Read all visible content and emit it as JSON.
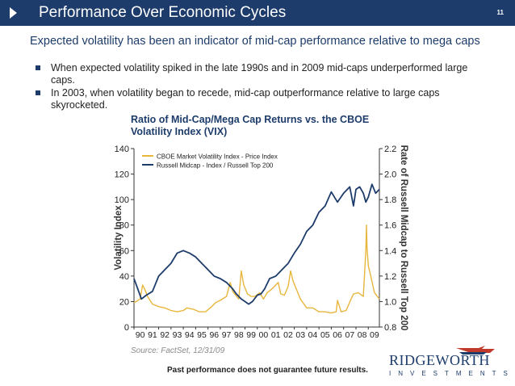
{
  "slide": {
    "title": "Performance Over Economic Cycles",
    "page_number": "11",
    "subtitle": "Expected volatility has been an indicator of mid-cap performance relative to mega caps",
    "bullets": [
      "When expected volatility spiked in the late 1990s and in 2009 mid-caps underperformed large caps.",
      "In 2003, when volatility began to recede, mid-cap outperformance  relative to large caps skyrocketed."
    ],
    "footer_note": "Past performance does not guarantee future results.",
    "logo": {
      "name": "RIDGEWORTH",
      "tagline": "INVESTMENTS"
    },
    "colors": {
      "title_bar": "#1d3c6b",
      "vix": "#e8b63c",
      "russell": "#1d3c6b"
    }
  },
  "chart_data": {
    "type": "line",
    "title": "Ratio of Mid-Cap/Mega Cap Returns vs. the CBOE Volatility Index (VIX)",
    "source": "Source: FactSet, 12/31/09",
    "ylabel_left": "Volatility Index",
    "ylabel_right": "Rate of Russell Midcap to Russell Top 200",
    "ylim_left": [
      0,
      140
    ],
    "ylim_right": [
      0.8,
      2.2
    ],
    "yticks_left": [
      "0",
      "20",
      "40",
      "60",
      "80",
      "100",
      "120",
      "140"
    ],
    "yticks_right": [
      "0.8",
      "1.0",
      "1.2",
      "1.4",
      "1.6",
      "1.8",
      "2.0",
      "2.2"
    ],
    "x_categories": [
      "90",
      "91",
      "92",
      "93",
      "94",
      "95",
      "96",
      "97",
      "98",
      "99",
      "00",
      "01",
      "02",
      "03",
      "04",
      "05",
      "06",
      "07",
      "08",
      "09"
    ],
    "xlim": [
      1990.0,
      2009.9
    ],
    "legend_position": "top-left",
    "series": [
      {
        "name": "CBOE Market Volatility Index - Price Index",
        "axis": "left",
        "color": "#e8b63c",
        "x": [
          1990.0,
          1990.5,
          1990.7,
          1990.9,
          1991.1,
          1991.5,
          1992.0,
          1992.5,
          1993.0,
          1993.5,
          1994.0,
          1994.3,
          1994.8,
          1995.3,
          1995.8,
          1996.3,
          1996.6,
          1997.0,
          1997.5,
          1997.8,
          1998.0,
          1998.5,
          1998.7,
          1998.9,
          1999.2,
          1999.5,
          1999.8,
          2000.2,
          2000.5,
          2000.8,
          2001.2,
          2001.7,
          2001.9,
          2002.2,
          2002.5,
          2002.7,
          2002.9,
          2003.2,
          2003.5,
          2004.0,
          2004.5,
          2005.0,
          2005.5,
          2006.0,
          2006.4,
          2006.5,
          2006.8,
          2007.2,
          2007.6,
          2007.8,
          2008.2,
          2008.6,
          2008.8,
          2008.85,
          2008.9,
          2009.0,
          2009.2,
          2009.5,
          2009.9
        ],
        "y": [
          19,
          22,
          33,
          29,
          24,
          18,
          16,
          15,
          13,
          12,
          13,
          15,
          14,
          12,
          12,
          16,
          19,
          21,
          24,
          35,
          28,
          22,
          44,
          33,
          26,
          24,
          24,
          27,
          22,
          27,
          30,
          35,
          26,
          25,
          32,
          44,
          36,
          29,
          22,
          15,
          15,
          12,
          12,
          11,
          12,
          21,
          12,
          13,
          22,
          26,
          27,
          24,
          60,
          80,
          62,
          48,
          40,
          27,
          22
        ]
      },
      {
        "name": "Russell Midcap - Index / Russell Top 200",
        "axis": "right",
        "color": "#1d3c6b",
        "x": [
          1990.0,
          1990.3,
          1990.6,
          1991.0,
          1991.5,
          1992.0,
          1992.5,
          1993.0,
          1993.5,
          1994.0,
          1994.5,
          1995.0,
          1995.5,
          1996.0,
          1996.5,
          1997.0,
          1997.5,
          1998.0,
          1998.3,
          1998.7,
          1999.0,
          1999.3,
          1999.6,
          2000.0,
          2000.3,
          2000.6,
          2001.0,
          2001.5,
          2002.0,
          2002.5,
          2003.0,
          2003.5,
          2004.0,
          2004.5,
          2005.0,
          2005.5,
          2006.0,
          2006.5,
          2007.0,
          2007.5,
          2007.8,
          2008.0,
          2008.3,
          2008.6,
          2008.8,
          2009.0,
          2009.3,
          2009.6,
          2009.9
        ],
        "y": [
          1.18,
          1.1,
          1.02,
          1.05,
          1.08,
          1.2,
          1.25,
          1.3,
          1.38,
          1.4,
          1.38,
          1.35,
          1.3,
          1.25,
          1.2,
          1.18,
          1.15,
          1.1,
          1.06,
          1.02,
          1.0,
          0.98,
          1.0,
          1.05,
          1.06,
          1.1,
          1.18,
          1.2,
          1.25,
          1.3,
          1.38,
          1.45,
          1.55,
          1.6,
          1.7,
          1.75,
          1.86,
          1.78,
          1.85,
          1.9,
          1.75,
          1.88,
          1.9,
          1.85,
          1.78,
          1.82,
          1.92,
          1.85,
          1.88
        ]
      }
    ]
  }
}
